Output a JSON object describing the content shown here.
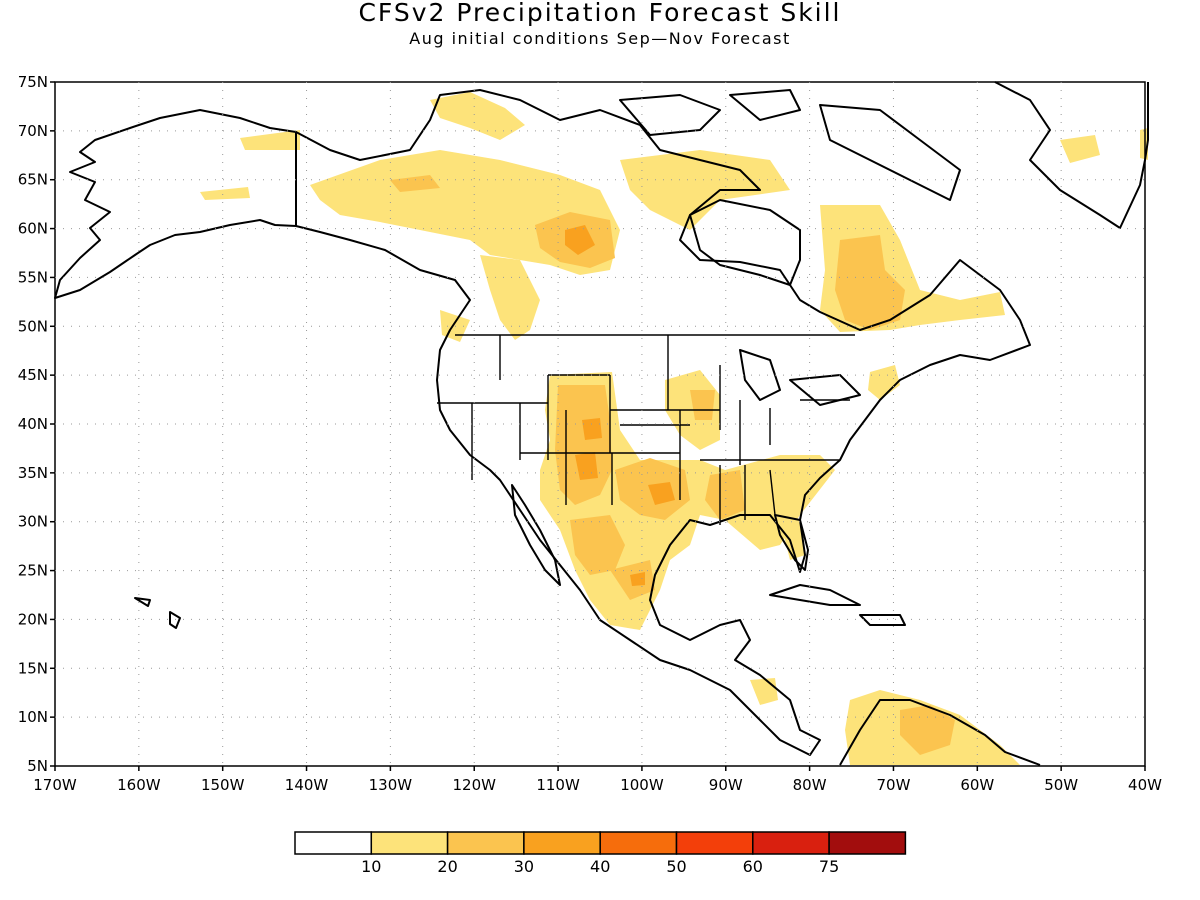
{
  "title": "CFSv2 Precipitation Forecast Skill",
  "subtitle": "Aug initial conditions  Sep—Nov Forecast",
  "map": {
    "lon_range": [
      -170,
      -40
    ],
    "lat_range": [
      5,
      75
    ],
    "lat_ticks": [
      "5N",
      "10N",
      "15N",
      "20N",
      "25N",
      "30N",
      "35N",
      "40N",
      "45N",
      "50N",
      "55N",
      "60N",
      "65N",
      "70N",
      "75N"
    ],
    "lon_ticks": [
      "170W",
      "160W",
      "150W",
      "140W",
      "130W",
      "120W",
      "110W",
      "100W",
      "90W",
      "80W",
      "70W",
      "60W",
      "50W",
      "40W"
    ],
    "gridlines": "dotted",
    "land_color": "#ffffff",
    "coastline_color": "#000000"
  },
  "colorbar": {
    "labels": [
      "10",
      "20",
      "30",
      "40",
      "50",
      "60",
      "75"
    ],
    "colors": [
      "#ffffff",
      "#fde37a",
      "#fbc44f",
      "#f9a11f",
      "#f66d0c",
      "#f33f0a",
      "#d9200f",
      "#a20d0d"
    ]
  }
}
